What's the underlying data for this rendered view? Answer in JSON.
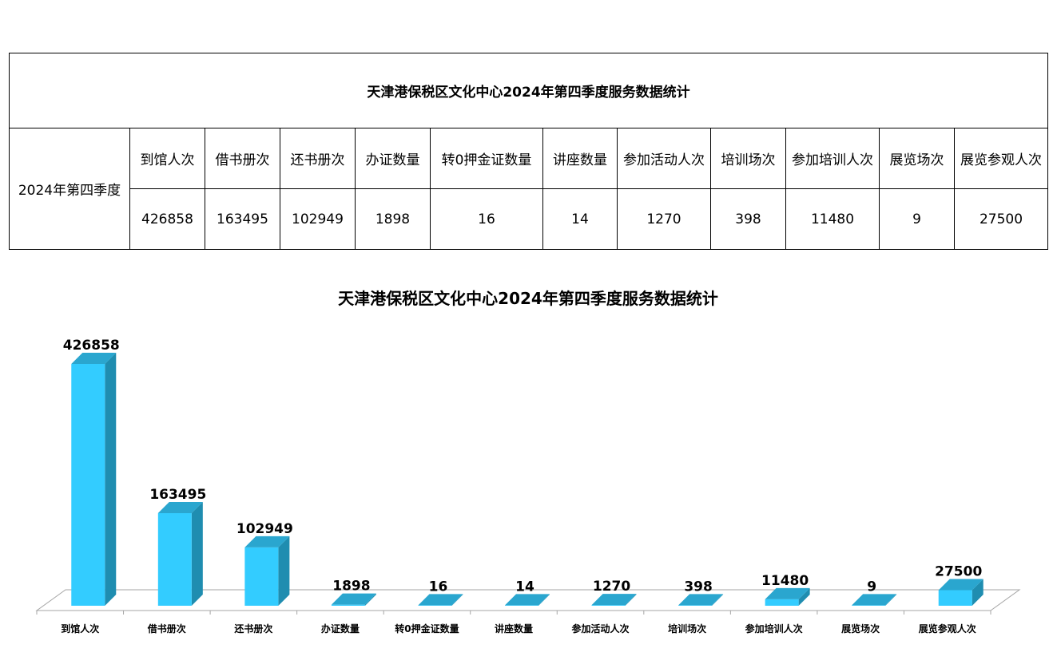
{
  "table": {
    "title": "天津港保税区文化中心2024年第四季度服务数据统计",
    "period": "2024年第四季度",
    "headers": [
      "到馆人次",
      "借书册次",
      "还书册次",
      "办证数量",
      "转0押金证数量",
      "讲座数量",
      "参加活动人次",
      "培训场次",
      "参加培训人次",
      "展览场次",
      "展览参观人次"
    ],
    "values": [
      "426858",
      "163495",
      "102949",
      "1898",
      "16",
      "14",
      "1270",
      "398",
      "11480",
      "9",
      "27500"
    ]
  },
  "chart_data": {
    "type": "bar",
    "title": "天津港保税区文化中心2024年第四季度服务数据统计",
    "categories": [
      "到馆人次",
      "借书册次",
      "还书册次",
      "办证数量",
      "转0押金证数量",
      "讲座数量",
      "参加活动人次",
      "培训场次",
      "参加培训人次",
      "展览场次",
      "展览参观人次"
    ],
    "values": [
      426858,
      163495,
      102949,
      1898,
      16,
      14,
      1270,
      398,
      11480,
      9,
      27500
    ],
    "xlabel": "",
    "ylabel": "",
    "ylim": [
      0,
      450000
    ],
    "grid": false,
    "legend": "none",
    "data_labels": true,
    "style": "3d-column",
    "colors": {
      "front": "#33ccff",
      "side": "#1f8db0",
      "top": "#2aa6cf",
      "axis": "#a6a6a6"
    }
  }
}
